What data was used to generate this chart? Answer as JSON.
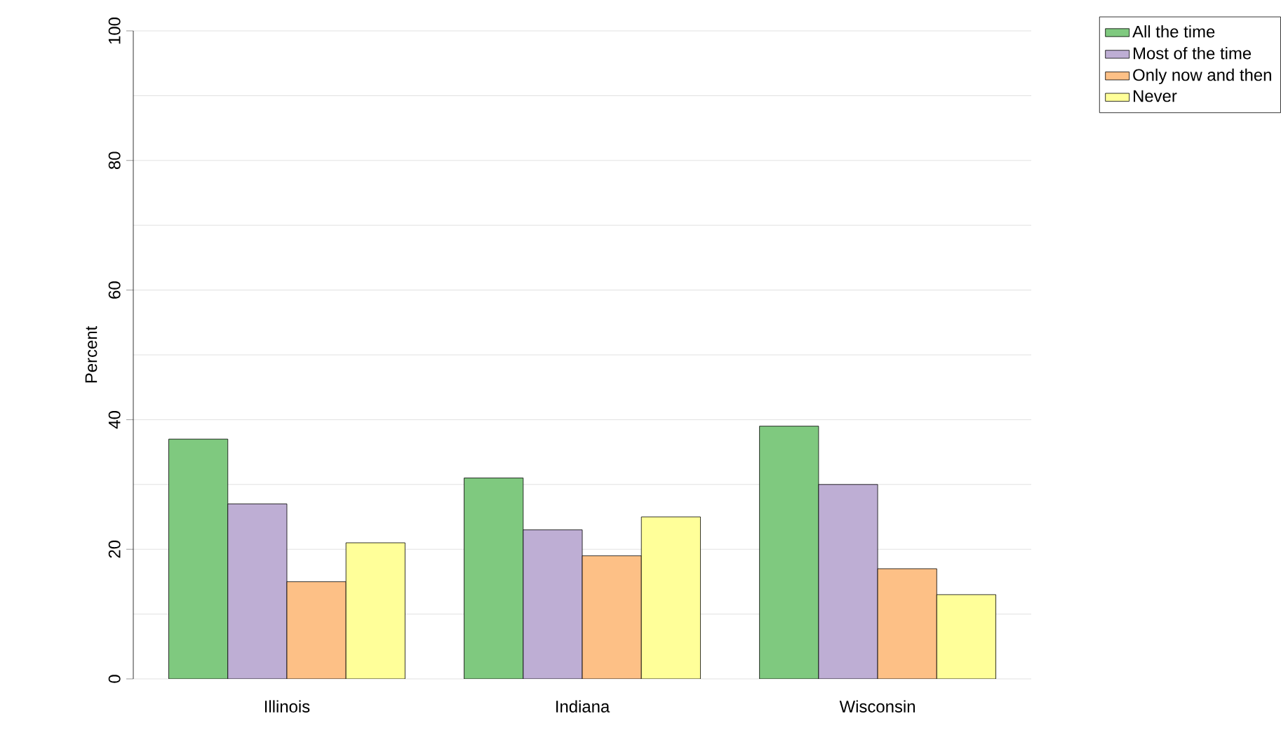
{
  "chart_data": {
    "type": "bar",
    "ylabel": "Percent",
    "categories": [
      "Illinois",
      "Indiana",
      "Wisconsin"
    ],
    "series": [
      {
        "name": "All the time",
        "color": "#7fc97f",
        "values": [
          37,
          31,
          39
        ]
      },
      {
        "name": "Most of the time",
        "color": "#beaed4",
        "values": [
          27,
          23,
          30
        ]
      },
      {
        "name": "Only now and then",
        "color": "#fdc086",
        "values": [
          15,
          19,
          17
        ]
      },
      {
        "name": "Never",
        "color": "#ffff99",
        "values": [
          21,
          25,
          13
        ]
      }
    ],
    "ylim": [
      0,
      100
    ],
    "yticks": [
      0,
      {
        "value": 10,
        "label": null
      },
      20,
      {
        "value": 30,
        "label": null
      },
      40,
      {
        "value": 50,
        "label": null
      },
      60,
      {
        "value": 70,
        "label": null
      },
      80,
      {
        "value": 90,
        "label": null
      },
      100
    ],
    "grid": "y",
    "legend": "top right"
  }
}
